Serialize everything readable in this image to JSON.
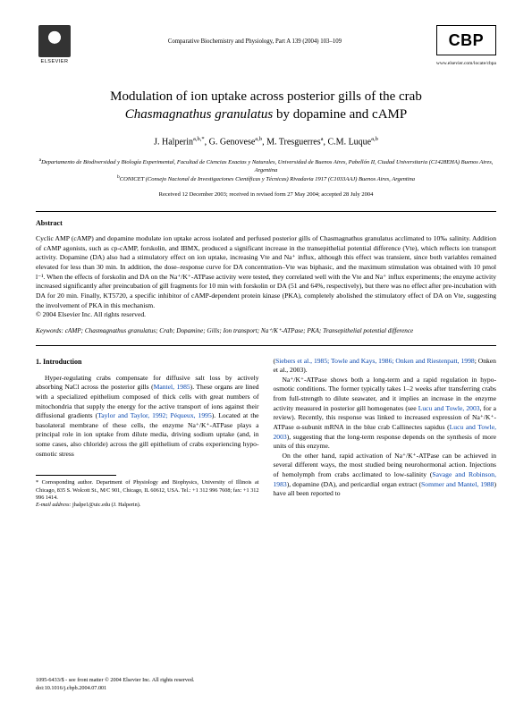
{
  "header": {
    "publisher": "ELSEVIER",
    "journal_line": "Comparative Biochemistry and Physiology, Part A 139 (2004) 103–109",
    "journal_abbr": "CBP",
    "journal_url": "www.elsevier.com/locate/cbpa"
  },
  "title_line1": "Modulation of ion uptake across posterior gills of the crab",
  "title_line2_italic": "Chasmagnathus granulatus",
  "title_line2_rest": " by dopamine and cAMP",
  "authors_html": "J. Halperin",
  "author_sup1": "a,b,*",
  "author2": ", G. Genovese",
  "author_sup2": "a,b",
  "author3": ", M. Tresguerres",
  "author_sup3": "a",
  "author4": ", C.M. Luque",
  "author_sup4": "a,b",
  "affiliations": {
    "a": "Departamento de Biodiversidad y Biología Experimental, Facultad de Ciencias Exactas y Naturales, Universidad de Buenos Aires, Pabellón II, Ciudad Universitaria (C1428EHA) Buenos Aires, Argentina",
    "b": "CONICET (Consejo Nacional de Investigaciones Científicas y Técnicas) Rivadavia 1917 (C1033AAJ) Buenos Aires, Argentina"
  },
  "dates": "Received 12 December 2003; received in revised form 27 May 2004; accepted 28 July 2004",
  "abstract_heading": "Abstract",
  "abstract_body": "Cyclic AMP (cAMP) and dopamine modulate ion uptake across isolated and perfused posterior gills of Chasmagnathus granulatus acclimated to 10‰ salinity. Addition of cAMP agonists, such as cp-cAMP, forskolin, and IBMX, produced a significant increase in the transepithelial potential difference (Vte), which reflects ion transport activity. Dopamine (DA) also had a stimulatory effect on ion uptake, increasing Vte and Na⁺ influx, although this effect was transient, since both variables remained elevated for less than 30 min. In addition, the dose–response curve for DA concentration–Vte was biphasic, and the maximum stimulation was obtained with 10 pmol l⁻¹. When the effects of forskolin and DA on the Na⁺/K⁺-ATPase activity were tested, they correlated well with the Vte and Na⁺ influx experiments; the enzyme activity increased significantly after preincubation of gill fragments for 10 min with forskolin or DA (51 and 64%, respectively), but there was no effect after pre-incubation with DA for 20 min. Finally, KT5720, a specific inhibitor of cAMP-dependent protein kinase (PKA), completely abolished the stimulatory effect of DA on Vte, suggesting the involvement of PKA in this mechanism.",
  "copyright_line": "© 2004 Elsevier Inc. All rights reserved.",
  "keywords_label": "Keywords:",
  "keywords_body": " cAMP; Chasmagnathus granulatus; Crab; Dopamine; Gills; Ion transport; Na⁺/K⁺-ATPase; PKA; Transepithelial potential difference",
  "intro_heading": "1. Introduction",
  "col1_p1a": "Hyper-regulating crabs compensate for diffusive salt loss by actively absorbing NaCl across the posterior gills (",
  "col1_ref1": "Mantel, 1985",
  "col1_p1b": "). These organs are lined with a specialized epithelium composed of thick cells with great numbers of mitochondria that supply the energy for the active transport of ions against their diffusional gradients (",
  "col1_ref2": "Taylor and Taylor, 1992; Péqueux, 1995",
  "col1_p1c": "). Located at the basolateral membrane of these cells, the enzyme Na⁺/K⁺-ATPase plays a principal role in ion uptake from dilute media, driving sodium uptake (and, in some cases, also chloride) across the gill epithelium of crabs experiencing hypo-osmotic stress",
  "col2_p0a": "(",
  "col2_ref0": "Siebers et al., 1985; Towle and Kays, 1986; Onken and Riestenpatt, 1998",
  "col2_p0b": "; Onken et al., 2003).",
  "col2_p1a": "Na⁺/K⁺-ATPase shows both a long-term and a rapid regulation in hypo-osmotic conditions. The former typically takes 1–2 weeks after transferring crabs from full-strength to dilute seawater, and it implies an increase in the enzyme activity measured in posterior gill homogenates (see ",
  "col2_ref1": "Lucu and Towle, 2003",
  "col2_p1b": ", for a review). Recently, this response was linked to increased expression of Na⁺/K⁺-ATPase α-subunit mRNA in the blue crab Callinectes sapidus (",
  "col2_ref2": "Lucu and Towle, 2003",
  "col2_p1c": "), suggesting that the long-term response depends on the synthesis of more units of this enzyme.",
  "col2_p2a": "On the other hand, rapid activation of Na⁺/K⁺-ATPase can be achieved in several different ways, the most studied being neurohormonal action. Injections of hemolymph from crabs acclimated to low-salinity (",
  "col2_ref3": "Savage and Robinson, 1983",
  "col2_p2b": "), dopamine (DA), and pericardial organ extract (",
  "col2_ref4": "Sommer and Mantel, 1988",
  "col2_p2c": ") have all been reported to",
  "footnote_star": "* Corresponding author. Department of Physiology and Biophysics, University of Illinois at Chicago, 835 S. Wolcott St., M/C 901, Chicago, IL 60612, USA. Tel.: +1 312 996 7608; fax: +1 312 996 1414.",
  "footnote_email_label": "E-mail address:",
  "footnote_email": " jhalpe1@uic.edu (J. Halperin).",
  "footer_issn": "1095-6433/$ - see front matter © 2004 Elsevier Inc. All rights reserved.",
  "footer_doi": "doi:10.1016/j.cbpb.2004.07.001",
  "colors": {
    "text": "#000000",
    "background": "#ffffff",
    "link": "#0645ad"
  }
}
